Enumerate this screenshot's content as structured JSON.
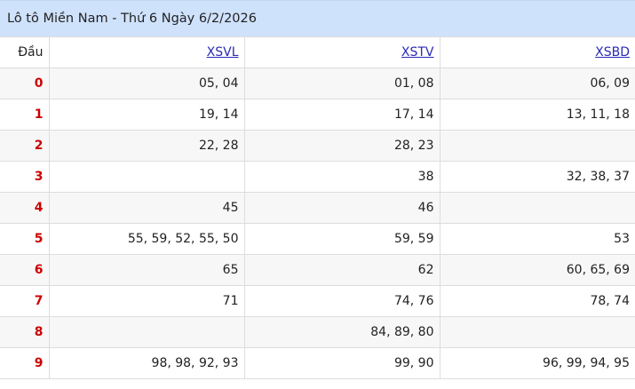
{
  "title": "Lô tô Miền Nam - Thứ 6 Ngày 6/2/2026",
  "header": {
    "dau": "Đầu",
    "cols": [
      "XSVL",
      "XSTV",
      "XSBD"
    ]
  },
  "rows": [
    {
      "d": "0",
      "v": [
        "05, 04",
        "01, 08",
        "06, 09"
      ]
    },
    {
      "d": "1",
      "v": [
        "19, 14",
        "17, 14",
        "13, 11, 18"
      ]
    },
    {
      "d": "2",
      "v": [
        "22, 28",
        "28, 23",
        ""
      ]
    },
    {
      "d": "3",
      "v": [
        "",
        "38",
        "32, 38, 37"
      ]
    },
    {
      "d": "4",
      "v": [
        "45",
        "46",
        ""
      ]
    },
    {
      "d": "5",
      "v": [
        "55, 59, 52, 55, 50",
        "59, 59",
        "53"
      ]
    },
    {
      "d": "6",
      "v": [
        "65",
        "62",
        "60, 65, 69"
      ]
    },
    {
      "d": "7",
      "v": [
        "71",
        "74, 76",
        "78, 74"
      ]
    },
    {
      "d": "8",
      "v": [
        "",
        "84, 89, 80",
        ""
      ]
    },
    {
      "d": "9",
      "v": [
        "98, 98, 92, 93",
        "99, 90",
        "96, 99, 94, 95"
      ]
    }
  ],
  "colors": {
    "title_bg": "#cfe2fc",
    "head_digit": "#cc0000",
    "link": "#2a2ab8"
  }
}
